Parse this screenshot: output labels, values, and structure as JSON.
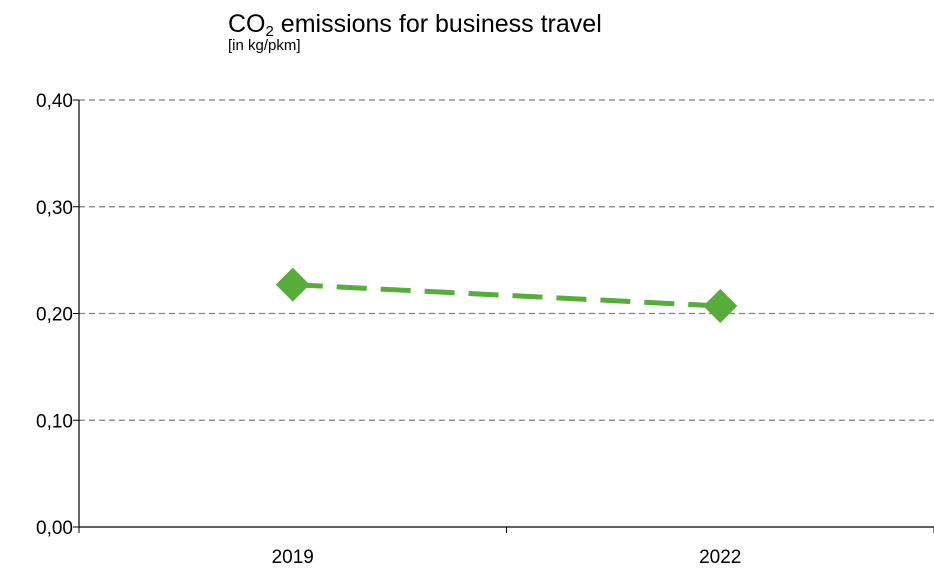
{
  "chart_data": {
    "type": "line",
    "title_prefix": "CO",
    "title_subscript": "2",
    "title_suffix": " emissions for business travel",
    "subtitle": "[in kg/pkm]",
    "categories": [
      "2019",
      "2022"
    ],
    "series": [
      {
        "values": [
          0.227,
          0.207
        ],
        "color": "#56ad3a"
      }
    ],
    "ylim": [
      0,
      0.4
    ],
    "y_ticks": [
      0.0,
      0.1,
      0.2,
      0.3,
      0.4
    ],
    "y_tick_labels": [
      "0,00",
      "0,10",
      "0,20",
      "0,30",
      "0,40"
    ],
    "grid": true,
    "legend": "none",
    "line_style": "dashed",
    "marker": "diamond"
  }
}
